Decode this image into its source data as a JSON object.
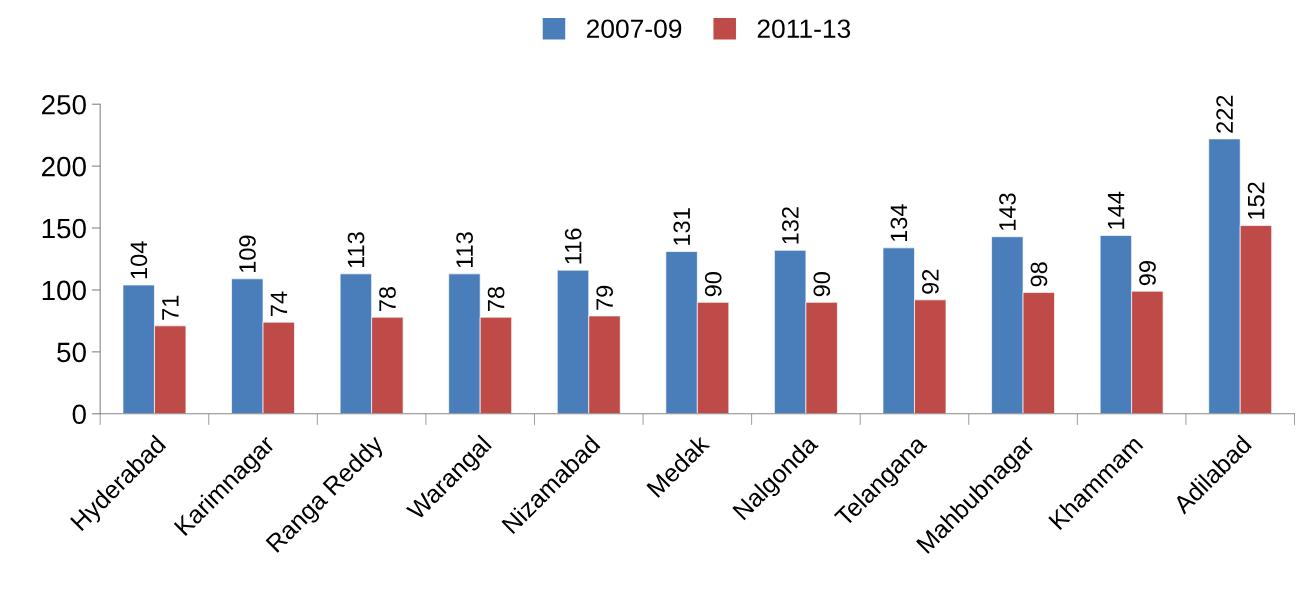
{
  "chart_data": {
    "type": "bar",
    "categories": [
      "Hyderabad",
      "Karimnagar",
      "Ranga Reddy",
      "Warangal",
      "Nizamabad",
      "Medak",
      "Nalgonda",
      "Telangana",
      "Mahbubnagar",
      "Khammam",
      "Adilabad"
    ],
    "series": [
      {
        "name": "2007-09",
        "color": "#4a7ebb",
        "values": [
          104,
          109,
          113,
          113,
          116,
          131,
          132,
          134,
          143,
          144,
          222
        ]
      },
      {
        "name": "2011-13",
        "color": "#be4b48",
        "values": [
          71,
          74,
          78,
          78,
          79,
          90,
          90,
          92,
          98,
          99,
          152
        ]
      }
    ],
    "ylim": [
      0,
      250
    ],
    "yticks": [
      0,
      50,
      100,
      150,
      200,
      250
    ],
    "data_labels": true,
    "grid": false,
    "legend": "top"
  }
}
